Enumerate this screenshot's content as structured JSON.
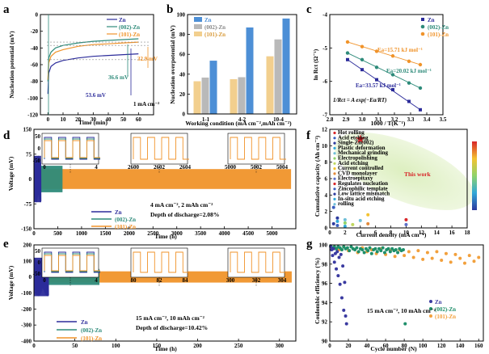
{
  "panels": {
    "a": "a",
    "b": "b",
    "c": "c",
    "d": "d",
    "e": "e",
    "f": "f",
    "g": "g"
  },
  "colors": {
    "zn": "#2b2b9a",
    "s002": "#2e8b7a",
    "s101": "#f0932a",
    "b1": "#f2cf8e",
    "b2": "#b9b9b9",
    "b3": "#4d8fd6",
    "g_zn": "#3a3aa0",
    "g_002": "#1f8f6a",
    "g_101": "#f2a03c"
  },
  "chart_data": [
    {
      "id": "a",
      "type": "line",
      "title": "",
      "xlabel": "Time (min)",
      "ylabel": "Nucleation potential (mV)",
      "xlim": [
        -5,
        70
      ],
      "ylim": [
        -120,
        0
      ],
      "xticks": [
        0,
        10,
        20,
        30,
        40,
        50,
        60
      ],
      "yticks": [
        0,
        -20,
        -40,
        -60,
        -80,
        -100,
        -120
      ],
      "legend": [
        "Zn",
        "(002)-Zn",
        "(101)-Zn"
      ],
      "annotations": [
        "32.9 mV",
        "36.6 mV",
        "53.6 mV",
        "1 mA cm⁻²"
      ],
      "series": [
        {
          "name": "Zn",
          "x": [
            0,
            0.5,
            2,
            5,
            10,
            20,
            30,
            40,
            50,
            60
          ],
          "y": [
            -95,
            -70,
            -62,
            -58,
            -55,
            -52,
            -50,
            -49,
            -48,
            -47
          ]
        },
        {
          "name": "(002)-Zn",
          "x": [
            0,
            0.5,
            2,
            5,
            10,
            20,
            30,
            40,
            50,
            60
          ],
          "y": [
            -80,
            -52,
            -45,
            -40,
            -37,
            -34,
            -32,
            -31,
            -30,
            -29
          ]
        },
        {
          "name": "(101)-Zn",
          "x": [
            0,
            0.5,
            2,
            5,
            10,
            20,
            30,
            40,
            50,
            60
          ],
          "y": [
            -78,
            -58,
            -50,
            -45,
            -42,
            -38,
            -36,
            -35,
            -34,
            -33
          ]
        }
      ]
    },
    {
      "id": "b",
      "type": "bar",
      "xlabel": "Working condition (mA cm⁻²,mAh cm⁻²)",
      "ylabel": "Nucleation overpotential (mV)",
      "ylim": [
        0,
        100
      ],
      "yticks": [
        0,
        20,
        40,
        60,
        80,
        100
      ],
      "categories": [
        "1-1",
        "4-2",
        "10-4"
      ],
      "legend": [
        "Zn",
        "(002)-Zn",
        "(101)-Zn"
      ],
      "series": [
        {
          "name": "(101)-Zn",
          "values": [
            32.9,
            35,
            58
          ]
        },
        {
          "name": "(002)-Zn",
          "values": [
            36.6,
            37,
            75
          ]
        },
        {
          "name": "Zn",
          "values": [
            53.6,
            87,
            96
          ]
        }
      ]
    },
    {
      "id": "c",
      "type": "scatter",
      "xlabel": "1000 / T(K⁻¹)",
      "ylabel": "ln Rct (Ω⁻¹)",
      "xlim": [
        2.8,
        3.5
      ],
      "ylim": [
        -7,
        -4
      ],
      "xticks": [
        2.8,
        2.9,
        3.0,
        3.1,
        3.2,
        3.3,
        3.4,
        3.5
      ],
      "yticks": [
        -4,
        -5,
        -6,
        -7
      ],
      "legend": [
        "Zn",
        "(002)-Zn",
        "(101)-Zn"
      ],
      "annotations": [
        "Ea=15.71 kJ mol⁻¹",
        "Ea=20.02 kJ mol⁻¹",
        "Ea=33.57 kJ mol⁻¹",
        "1/Rct = A exp(−Ea/RT)"
      ],
      "series": [
        {
          "name": "(101)-Zn",
          "x": [
            2.91,
            3.0,
            3.09,
            3.19,
            3.29,
            3.36
          ],
          "y": [
            -4.82,
            -4.96,
            -5.1,
            -5.24,
            -5.4,
            -5.5
          ]
        },
        {
          "name": "(002)-Zn",
          "x": [
            2.91,
            3.0,
            3.09,
            3.19,
            3.29,
            3.36
          ],
          "y": [
            -5.15,
            -5.35,
            -5.58,
            -5.8,
            -6.05,
            -6.2
          ]
        },
        {
          "name": "Zn",
          "x": [
            2.91,
            3.0,
            3.09,
            3.19,
            3.29,
            3.36
          ],
          "y": [
            -5.35,
            -5.65,
            -5.95,
            -6.25,
            -6.6,
            -6.85
          ]
        }
      ]
    },
    {
      "id": "d",
      "type": "line",
      "xlabel": "Time (h)",
      "ylabel": "Voltage (mV)",
      "xlim": [
        0,
        5500
      ],
      "ylim": [
        -150,
        150
      ],
      "xticks": [
        0,
        500,
        1000,
        1500,
        2000,
        2500,
        3000,
        3500,
        4000,
        4500,
        5000
      ],
      "yticks": [
        150,
        75,
        0,
        -75,
        -150
      ],
      "legend": [
        "Zn",
        "(002)-Zn",
        "(101)-Zn"
      ],
      "annotations": [
        "4 mA cm⁻², 2 mAh cm⁻²",
        "Depth of discharge=2.08%"
      ],
      "insets": [
        {
          "xticks": [
            "0",
            "4"
          ],
          "yticks": [
            "50",
            "0",
            "-50"
          ]
        },
        {
          "xticks": [
            "2600",
            "2602",
            "2604"
          ]
        },
        {
          "xticks": [
            "5000",
            "5002",
            "5004"
          ]
        }
      ],
      "series": [
        {
          "name": "Zn",
          "x_end": 150,
          "amplitude": 70
        },
        {
          "name": "(002)-Zn",
          "x_end": 600,
          "amplitude": 40
        },
        {
          "name": "(101)-Zn",
          "x_end": 5400,
          "amplitude": 30
        }
      ]
    },
    {
      "id": "e",
      "type": "line",
      "xlabel": "Time (h)",
      "ylabel": "Voltage (mV)",
      "xlim": [
        0,
        320
      ],
      "ylim": [
        -400,
        200
      ],
      "xticks": [
        0,
        50,
        100,
        150,
        200,
        250,
        300
      ],
      "yticks": [
        200,
        100,
        0,
        -100,
        -200,
        -300,
        -400
      ],
      "legend": [
        "Zn",
        "(002)-Zn",
        "(101)-Zn"
      ],
      "annotations": [
        "15 mA cm⁻², 10 mAh cm⁻²",
        "Depth of discharge=10.42%"
      ],
      "insets": [
        {
          "xticks": [
            "0",
            "4"
          ],
          "yticks": [
            "50",
            "0",
            "-50"
          ]
        },
        {
          "xticks": [
            "80",
            "82",
            "84"
          ]
        },
        {
          "xticks": [
            "300",
            "302",
            "304"
          ]
        }
      ],
      "series": [
        {
          "name": "Zn",
          "x_end": 18,
          "amplitude": 120
        },
        {
          "name": "(002)-Zn",
          "x_end": 80,
          "amplitude": 50
        },
        {
          "name": "(101)-Zn",
          "x_end": 315,
          "amplitude": 35
        }
      ]
    },
    {
      "id": "f",
      "type": "scatter",
      "xlabel": "Current density (mA cm⁻²)",
      "ylabel": "Cumulative capacity (Ah cm⁻²)",
      "xlim": [
        0,
        18
      ],
      "ylim": [
        0,
        12
      ],
      "xticks": [
        0,
        2,
        4,
        6,
        8,
        10,
        12,
        14,
        16,
        18
      ],
      "yticks": [
        0,
        2,
        4,
        6,
        8,
        10,
        12
      ],
      "annotations": [
        "This work"
      ],
      "legend_items": [
        "Hot rolling",
        "Acid etching",
        "Single-Zn(002)",
        "Plastic deformation",
        "Mechanical grinding",
        "Electropolishing",
        "Acid etching",
        "Current controlled",
        "CVD monolayer",
        "Electroepitaxy",
        "Regulates nucleation",
        "Zincophilic template",
        "Low lattice mismatch",
        "In-situ acid etching",
        "rolling"
      ],
      "points": [
        {
          "x": 4,
          "y": 10.8,
          "label": "This work"
        },
        {
          "x": 0.5,
          "y": 2.5
        },
        {
          "x": 1,
          "y": 1.2
        },
        {
          "x": 1,
          "y": 0.8
        },
        {
          "x": 2,
          "y": 1.0
        },
        {
          "x": 2,
          "y": 0.6
        },
        {
          "x": 3,
          "y": 0.4
        },
        {
          "x": 5,
          "y": 1.6
        },
        {
          "x": 5,
          "y": 0.5
        },
        {
          "x": 10,
          "y": 0.4
        },
        {
          "x": 10,
          "y": 1.0
        },
        {
          "x": 1,
          "y": 0.3
        },
        {
          "x": 0.5,
          "y": 0.5
        },
        {
          "x": 2,
          "y": 0.2
        },
        {
          "x": 4,
          "y": 0.9
        }
      ]
    },
    {
      "id": "g",
      "type": "scatter",
      "xlabel": "Cycle number (N)",
      "ylabel": "Coulombic efficiency (%)",
      "xlim": [
        0,
        165
      ],
      "ylim": [
        90,
        100
      ],
      "xticks": [
        0,
        20,
        40,
        60,
        80,
        100,
        120,
        140,
        160
      ],
      "yticks": [
        90,
        92,
        94,
        96,
        98,
        100
      ],
      "legend": [
        "Zn",
        "(002)-Zn",
        "(101)-Zn"
      ],
      "annotations": [
        "15 mA cm⁻², 10 mAh cm⁻²"
      ],
      "series": [
        {
          "name": "Zn",
          "x": [
            1,
            2,
            3,
            4,
            5,
            6,
            7,
            8,
            9,
            10,
            11,
            12,
            13,
            14,
            15,
            16,
            17,
            18
          ],
          "y": [
            99.8,
            99.5,
            98.9,
            99.6,
            98.2,
            99.1,
            97.5,
            99.3,
            96.8,
            98.7,
            95.9,
            99.0,
            94.5,
            97.8,
            93.2,
            96.1,
            92.6,
            91.8
          ]
        },
        {
          "name": "(002)-Zn",
          "x": [
            1,
            3,
            5,
            7,
            9,
            11,
            13,
            15,
            17,
            19,
            21,
            23,
            25,
            27,
            29,
            31,
            33,
            35,
            37,
            39,
            41,
            43,
            45,
            47,
            49,
            51,
            53,
            55,
            57,
            59,
            61,
            63,
            65,
            67,
            69,
            71,
            73,
            75,
            77,
            79,
            81
          ],
          "y": [
            99.9,
            99.7,
            99.8,
            99.6,
            99.8,
            99.7,
            99.5,
            99.8,
            99.6,
            99.7,
            99.4,
            99.8,
            99.6,
            99.5,
            99.7,
            99.3,
            99.6,
            99.5,
            99.2,
            99.6,
            99.4,
            99.7,
            99.1,
            99.5,
            99.6,
            99.3,
            99.6,
            99.4,
            99.7,
            99.2,
            99.5,
            99.6,
            99.3,
            99.6,
            99.4,
            99.5,
            99.2,
            99.6,
            99.4,
            99.5,
            91.8
          ]
        },
        {
          "name": "(101)-Zn",
          "x": [
            5,
            10,
            15,
            20,
            25,
            30,
            35,
            40,
            45,
            50,
            55,
            60,
            65,
            70,
            75,
            80,
            85,
            90,
            95,
            100,
            105,
            110,
            115,
            120,
            125,
            130,
            135,
            140,
            145,
            150,
            155,
            160
          ],
          "y": [
            99.7,
            99.5,
            99.8,
            99.4,
            99.6,
            99.2,
            99.7,
            99.3,
            99.5,
            99.1,
            99.6,
            99.0,
            99.4,
            98.8,
            99.5,
            98.9,
            99.3,
            98.7,
            99.4,
            98.5,
            99.2,
            98.6,
            99.3,
            98.4,
            99.1,
            98.2,
            99.0,
            98.6,
            98.1,
            98.9,
            98.3,
            98.7
          ]
        }
      ]
    }
  ]
}
